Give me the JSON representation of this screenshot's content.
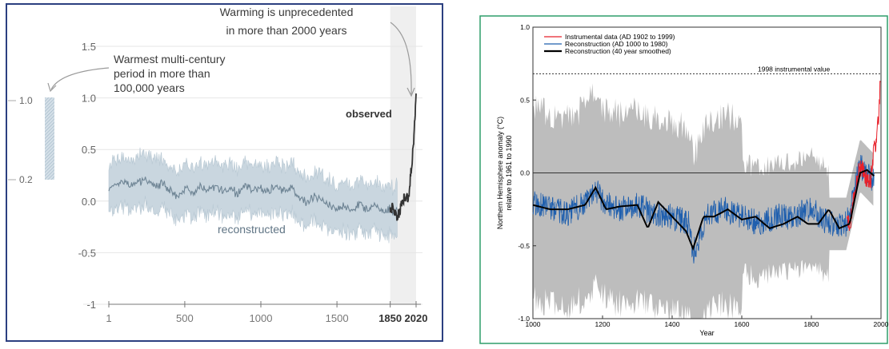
{
  "chart_data": [
    {
      "type": "line",
      "title": "",
      "xlabel": "",
      "ylabel": "",
      "xlim": [
        1,
        2020
      ],
      "ylim": [
        -1,
        1.5
      ],
      "x_ticks": [
        "1",
        "500",
        "1000",
        "1500",
        "1850",
        "2020"
      ],
      "y_ticks": [
        "1.5",
        "1.0",
        "0.5",
        "0.0",
        "-0.5",
        "-1"
      ],
      "side_bar": {
        "ticks": [
          "1.0",
          "0.2"
        ],
        "range": [
          0.2,
          1.0
        ]
      },
      "annotations": {
        "warming": [
          "Warming is unprecedented",
          "in more than 2000 years"
        ],
        "warmest": [
          "Warmest multi-century",
          "period in more than",
          "100,000 years"
        ],
        "observed": "observed",
        "reconstructed": "reconstructed"
      },
      "highlight_span": [
        1850,
        2020
      ],
      "series": [
        {
          "name": "reconstructed",
          "x": [
            1,
            50,
            100,
            150,
            200,
            250,
            300,
            350,
            400,
            450,
            500,
            550,
            600,
            650,
            700,
            750,
            800,
            850,
            900,
            950,
            1000,
            1050,
            1100,
            1150,
            1200,
            1250,
            1300,
            1350,
            1400,
            1450,
            1500,
            1550,
            1600,
            1650,
            1700,
            1750,
            1800,
            1850,
            1880,
            1900
          ],
          "y": [
            0.1,
            0.16,
            0.2,
            0.15,
            0.18,
            0.22,
            0.12,
            0.17,
            0.1,
            0.05,
            0.12,
            0.08,
            0.15,
            0.1,
            0.14,
            0.1,
            0.12,
            0.07,
            0.16,
            0.1,
            0.12,
            0.09,
            0.15,
            0.1,
            0.12,
            0.05,
            -0.02,
            0.05,
            0.0,
            -0.05,
            -0.08,
            -0.05,
            -0.1,
            -0.03,
            -0.08,
            -0.05,
            -0.1,
            -0.08,
            -0.12,
            -0.05
          ]
        },
        {
          "name": "observed",
          "x": [
            1850,
            1870,
            1890,
            1910,
            1930,
            1950,
            1970,
            1990,
            2000,
            2010,
            2020
          ],
          "y": [
            -0.1,
            -0.05,
            -0.15,
            -0.12,
            0.0,
            0.05,
            0.02,
            0.35,
            0.5,
            0.75,
            1.07
          ]
        }
      ]
    },
    {
      "type": "line",
      "title": "",
      "xlabel": "Year",
      "ylabel": "Northern Hemisphere anomaly (°C) relative to 1961 to 1990",
      "ylabel_lines": [
        "Northern Hemisphere anomaly (°C)",
        "relative to 1961 to 1990"
      ],
      "xlim": [
        1000,
        2000
      ],
      "ylim": [
        -1.0,
        1.0
      ],
      "x_ticks": [
        "1000",
        "1200",
        "1400",
        "1600",
        "1800",
        "2000"
      ],
      "y_ticks": [
        "1.0",
        "0.5",
        "0.0",
        "-0.5",
        "-1.0"
      ],
      "annotation": "1998 instrumental value",
      "reference_value": 0.68,
      "legend_position": "top-left",
      "series": [
        {
          "name": "Instrumental data (AD 1902 to 1999)",
          "color": "#e8202a",
          "x": [
            1902,
            1910,
            1920,
            1930,
            1940,
            1950,
            1960,
            1970,
            1980,
            1990,
            1995,
            1998
          ],
          "y": [
            -0.3,
            -0.35,
            -0.2,
            -0.05,
            0.05,
            0.0,
            -0.05,
            -0.05,
            0.15,
            0.3,
            0.45,
            0.68
          ]
        },
        {
          "name": "Reconstruction (AD 1000 to 1980)",
          "color": "#1f5fae",
          "x": [
            1000,
            1050,
            1100,
            1150,
            1180,
            1200,
            1250,
            1300,
            1350,
            1400,
            1450,
            1460,
            1500,
            1550,
            1600,
            1650,
            1700,
            1750,
            1800,
            1850,
            1900,
            1940,
            1980
          ],
          "y": [
            -0.2,
            -0.25,
            -0.28,
            -0.2,
            -0.1,
            -0.2,
            -0.25,
            -0.22,
            -0.28,
            -0.3,
            -0.35,
            -0.55,
            -0.3,
            -0.25,
            -0.3,
            -0.35,
            -0.3,
            -0.3,
            -0.25,
            -0.35,
            -0.35,
            0.05,
            -0.05
          ]
        },
        {
          "name": "Reconstruction (40 year smoothed)",
          "color": "#000000",
          "x": [
            1000,
            1050,
            1100,
            1150,
            1180,
            1210,
            1250,
            1300,
            1330,
            1360,
            1400,
            1440,
            1460,
            1490,
            1520,
            1560,
            1600,
            1640,
            1680,
            1720,
            1760,
            1790,
            1820,
            1850,
            1880,
            1910,
            1940,
            1960,
            1980
          ],
          "y": [
            -0.22,
            -0.25,
            -0.25,
            -0.22,
            -0.1,
            -0.25,
            -0.23,
            -0.22,
            -0.38,
            -0.2,
            -0.3,
            -0.4,
            -0.52,
            -0.3,
            -0.3,
            -0.25,
            -0.32,
            -0.3,
            -0.38,
            -0.35,
            -0.3,
            -0.35,
            -0.35,
            -0.25,
            -0.38,
            -0.35,
            0.0,
            0.02,
            -0.02
          ]
        }
      ]
    }
  ]
}
